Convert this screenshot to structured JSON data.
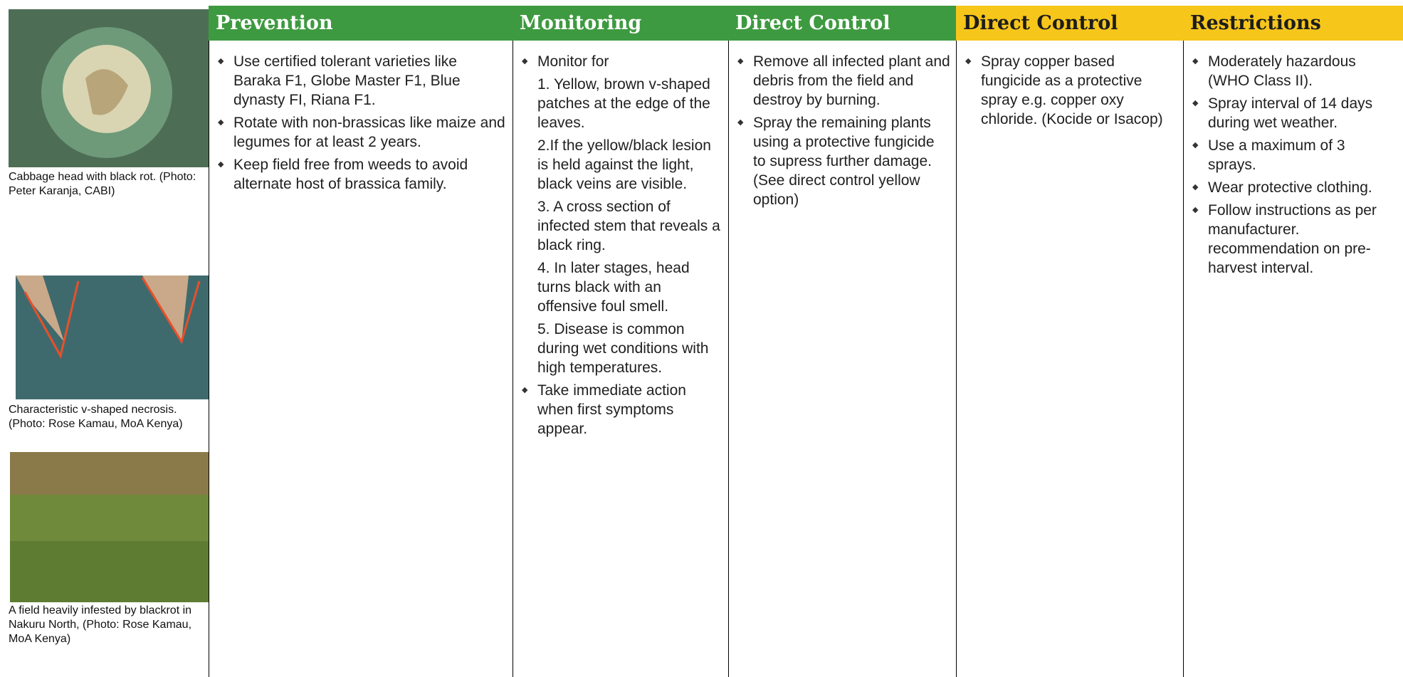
{
  "photos": [
    {
      "caption": "Cabbage head with black rot. (Photo: Peter Karanja, CABI)"
    },
    {
      "caption": "Characteristic v-shaped necrosis. (Photo: Rose Kamau, MoA Kenya)"
    },
    {
      "caption": "A field heavily infested by blackrot in Nakuru North, (Photo: Rose Kamau, MoA Kenya)"
    }
  ],
  "columns": [
    {
      "title": "Prevention",
      "items": [
        "Use certified tolerant varieties like Baraka F1, Globe Master F1, Blue dynasty FI, Riana F1.",
        "Rotate with non-brassicas like maize and legumes for at least 2 years.",
        "Keep field free from weeds to avoid alternate host of brassica family."
      ]
    },
    {
      "title": "Monitoring",
      "items": [
        {
          "text": "Monitor for",
          "sub": [
            "1. Yellow, brown v-shaped patches at the edge of the leaves.",
            "2.If the yellow/black lesion is held against the light, black veins are visible.",
            "3. A cross section of infected stem that reveals a black ring.",
            "4. In later stages, head turns black with an offensive foul smell.",
            "5. Disease is common during wet conditions with high temperatures."
          ]
        },
        "Take immediate action when first symptoms appear."
      ]
    },
    {
      "title": "Direct Control",
      "items": [
        "Remove all infected plant and debris from the field and destroy by burning.",
        "Spray the remaining plants using a protective fungicide to supress further damage. (See direct control yellow option)"
      ]
    },
    {
      "title": "Direct Control",
      "items": [
        "Spray copper based fungicide as a protective spray e.g. copper oxy chloride. (Kocide or Isacop)"
      ]
    },
    {
      "title": "Restrictions",
      "items": [
        "Moderately hazardous (WHO Class II).",
        "Spray interval of 14 days during wet weather.",
        "Use a maximum of 3 sprays.",
        "Wear protective clothing.",
        "Follow instructions as per manufacturer. recommendation on pre-harvest interval."
      ]
    }
  ]
}
